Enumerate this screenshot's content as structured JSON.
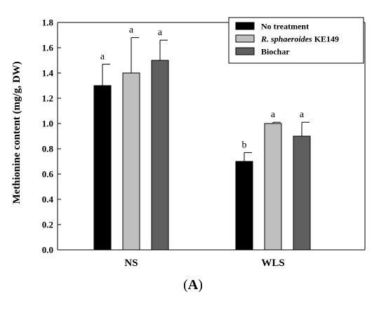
{
  "chart_data": {
    "type": "bar",
    "ylabel": "Methionine content (mg/g, DW)",
    "ylim": [
      0,
      1.8
    ],
    "yticks": [
      "0.0",
      "0.2",
      "0.4",
      "0.6",
      "0.8",
      "1.0",
      "1.2",
      "1.4",
      "1.6",
      "1.8"
    ],
    "categories": [
      "NS",
      "WLS"
    ],
    "series": [
      {
        "name": "No treatment",
        "values": [
          1.3,
          0.7
        ],
        "errors": [
          0.17,
          0.07
        ],
        "letters": [
          "a",
          "b"
        ],
        "color": "#000000"
      },
      {
        "name_prefix": "R. sphaeroides",
        "name_suffix": " KE149",
        "values": [
          1.4,
          1.0
        ],
        "errors": [
          0.28,
          0.01
        ],
        "letters": [
          "a",
          "a"
        ],
        "color": "#bfbfbf"
      },
      {
        "name": "Biochar",
        "values": [
          1.5,
          0.9
        ],
        "errors": [
          0.16,
          0.11
        ],
        "letters": [
          "a",
          "a"
        ],
        "color": "#5f5f5f"
      }
    ],
    "legend_position": "top-right",
    "grid": false
  },
  "panel_label": "A"
}
